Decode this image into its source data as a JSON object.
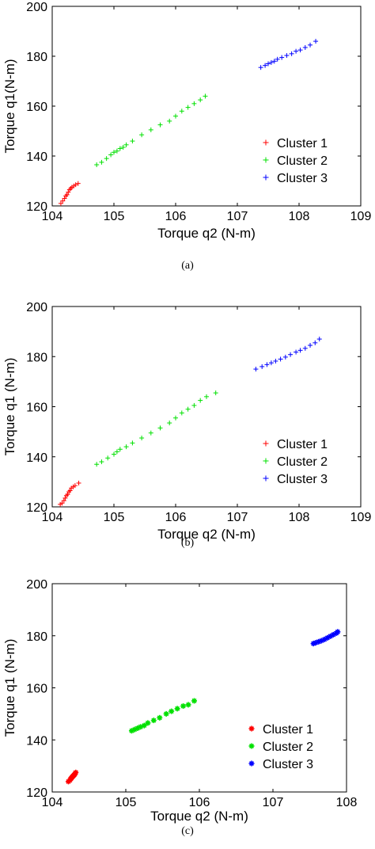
{
  "chart_data": [
    {
      "type": "scatter",
      "xlabel": "Torque q2 (N-m)",
      "ylabel": "Torque q1(N-m)",
      "xlim": [
        104,
        109
      ],
      "ylim": [
        120,
        200
      ],
      "xticks": [
        "104",
        "105",
        "106",
        "107",
        "108",
        "109"
      ],
      "yticks": [
        "120",
        "140",
        "160",
        "180",
        "200"
      ],
      "grid": false,
      "legend_position": "bottom-right",
      "marker": "+",
      "caption": "(a)",
      "series": [
        {
          "name": "Cluster 1",
          "color": "#ff0000",
          "x": [
            104.14,
            104.17,
            104.2,
            104.22,
            104.24,
            104.26,
            104.28,
            104.3,
            104.32,
            104.35,
            104.38,
            104.42
          ],
          "y": [
            121.0,
            122.0,
            123.0,
            124.0,
            124.5,
            125.5,
            126.5,
            127.0,
            127.5,
            128.0,
            128.5,
            129.0
          ]
        },
        {
          "name": "Cluster 2",
          "color": "#00e000",
          "x": [
            104.72,
            104.8,
            104.88,
            104.95,
            105.0,
            105.05,
            105.1,
            105.15,
            105.2,
            105.3,
            105.45,
            105.6,
            105.75,
            105.9,
            106.0,
            106.1,
            106.2,
            106.3,
            106.4,
            106.48
          ],
          "y": [
            136.5,
            137.5,
            139.0,
            140.5,
            141.5,
            142.0,
            143.0,
            143.5,
            144.5,
            146.0,
            148.5,
            150.5,
            152.5,
            154.0,
            156.0,
            158.0,
            159.5,
            161.0,
            162.5,
            164.0
          ]
        },
        {
          "name": "Cluster 3",
          "color": "#0000ff",
          "x": [
            107.38,
            107.45,
            107.5,
            107.55,
            107.6,
            107.65,
            107.72,
            107.8,
            107.88,
            107.95,
            108.02,
            108.1,
            108.18,
            108.27
          ],
          "y": [
            175.5,
            176.3,
            177.0,
            177.5,
            178.0,
            178.8,
            179.5,
            180.3,
            181.0,
            182.0,
            182.5,
            183.5,
            184.5,
            186.0
          ]
        }
      ]
    },
    {
      "type": "scatter",
      "xlabel": "Torque q2 (N-m)",
      "ylabel": "Torque q1 (N-m)",
      "xlim": [
        104,
        109
      ],
      "ylim": [
        120,
        200
      ],
      "xticks": [
        "104",
        "105",
        "106",
        "107",
        "108",
        "109"
      ],
      "yticks": [
        "120",
        "140",
        "160",
        "180",
        "200"
      ],
      "grid": false,
      "legend_position": "bottom-right",
      "marker": "+",
      "caption": "(b)",
      "series": [
        {
          "name": "Cluster 1",
          "color": "#ff0000",
          "x": [
            104.13,
            104.16,
            104.19,
            104.21,
            104.23,
            104.25,
            104.27,
            104.29,
            104.31,
            104.34,
            104.37,
            104.43
          ],
          "y": [
            121.0,
            121.5,
            122.5,
            123.5,
            124.5,
            125.0,
            126.0,
            126.5,
            127.5,
            128.0,
            128.5,
            129.5
          ]
        },
        {
          "name": "Cluster 2",
          "color": "#00e000",
          "x": [
            104.72,
            104.8,
            104.9,
            105.0,
            105.05,
            105.1,
            105.2,
            105.3,
            105.45,
            105.6,
            105.75,
            105.9,
            106.0,
            106.1,
            106.2,
            106.3,
            106.4,
            106.5,
            106.65
          ],
          "y": [
            137.0,
            138.0,
            139.5,
            141.0,
            142.0,
            143.0,
            144.0,
            145.5,
            147.5,
            149.5,
            151.5,
            153.5,
            155.5,
            157.5,
            159.0,
            160.5,
            162.5,
            164.0,
            165.5
          ]
        },
        {
          "name": "Cluster 3",
          "color": "#0000ff",
          "x": [
            107.3,
            107.4,
            107.48,
            107.55,
            107.62,
            107.7,
            107.78,
            107.86,
            107.95,
            108.02,
            108.1,
            108.18,
            108.26,
            108.33
          ],
          "y": [
            175.0,
            176.0,
            176.8,
            177.5,
            178.2,
            179.0,
            179.8,
            180.8,
            181.8,
            182.5,
            183.3,
            184.5,
            185.5,
            187.0
          ]
        }
      ]
    },
    {
      "type": "scatter",
      "xlabel": "Torque q2 (N-m)",
      "ylabel": "Torque q1 (N-m)",
      "xlim": [
        104,
        108
      ],
      "ylim": [
        120,
        200
      ],
      "xticks": [
        "104",
        "105",
        "106",
        "107",
        "108"
      ],
      "yticks": [
        "120",
        "140",
        "160",
        "180",
        "200"
      ],
      "grid": false,
      "legend_position": "bottom-right",
      "marker": "*",
      "caption": "(c)",
      "series": [
        {
          "name": "Cluster 1",
          "color": "#ff0000",
          "x": [
            104.22,
            104.24,
            104.25,
            104.26,
            104.27,
            104.28,
            104.29,
            104.3,
            104.31,
            104.32
          ],
          "y": [
            124.0,
            124.5,
            125.0,
            125.3,
            125.7,
            126.0,
            126.3,
            126.6,
            127.0,
            127.5
          ]
        },
        {
          "name": "Cluster 2",
          "color": "#00e000",
          "x": [
            105.08,
            105.12,
            105.16,
            105.2,
            105.25,
            105.3,
            105.38,
            105.46,
            105.55,
            105.62,
            105.7,
            105.78,
            105.85,
            105.93
          ],
          "y": [
            143.5,
            144.0,
            144.5,
            145.0,
            145.5,
            146.5,
            147.5,
            148.5,
            150.0,
            151.0,
            152.0,
            153.0,
            153.5,
            155.0
          ]
        },
        {
          "name": "Cluster 3",
          "color": "#0000ff",
          "x": [
            107.55,
            107.58,
            107.62,
            107.66,
            107.7,
            107.74,
            107.78,
            107.82,
            107.86,
            107.88
          ],
          "y": [
            177.0,
            177.3,
            177.7,
            178.1,
            178.6,
            179.2,
            179.8,
            180.4,
            181.0,
            181.5
          ]
        }
      ]
    }
  ]
}
